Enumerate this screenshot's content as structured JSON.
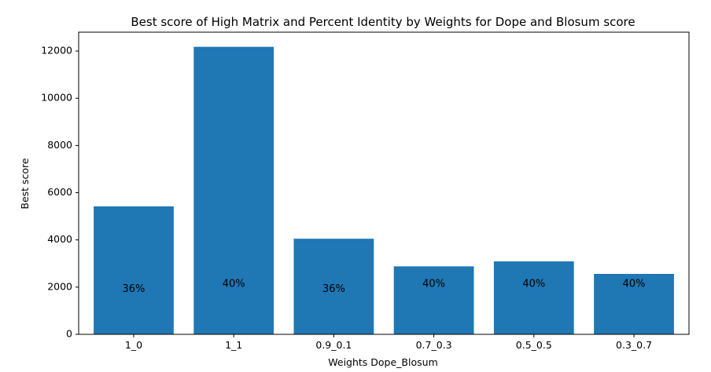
{
  "chart_data": {
    "type": "bar",
    "title": "Best score of High Matrix and Percent Identity by Weights for Dope and Blosum score",
    "xlabel": "Weights Dope_Blosum",
    "ylabel": "Best score",
    "categories": [
      "1_0",
      "1_1",
      "0.9_0.1",
      "0.7_0.3",
      "0.5_0.5",
      "0.3_0.7"
    ],
    "values": [
      5420,
      12180,
      4050,
      2880,
      3090,
      2560
    ],
    "bar_labels": [
      "36%",
      "40%",
      "36%",
      "40%",
      "40%",
      "40%"
    ],
    "bar_label_values": [
      1920,
      2130,
      1920,
      2130,
      2130,
      2130
    ],
    "ylim": [
      0,
      12800
    ],
    "yticks": [
      0,
      2000,
      4000,
      6000,
      8000,
      10000,
      12000
    ],
    "ytick_labels": [
      "0",
      "2000",
      "4000",
      "6000",
      "8000",
      "10000",
      "12000"
    ],
    "bar_color": "#1f77b4",
    "grid": false,
    "legend": "none"
  }
}
